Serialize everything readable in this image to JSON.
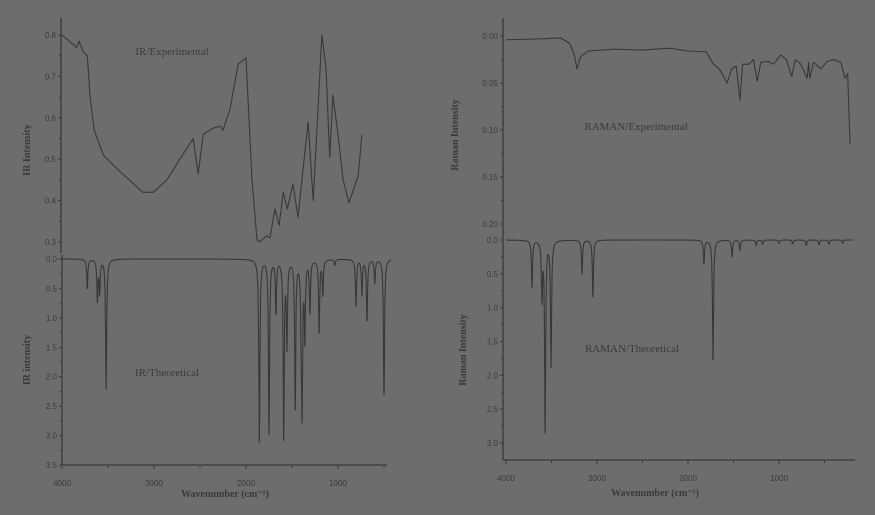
{
  "colors": {
    "background": "#6d6d6d",
    "line": "#383838",
    "text": "#3a3a3a"
  },
  "chart_data": [
    {
      "id": "ir-exp",
      "type": "line",
      "label": "IR/Experimental",
      "ylabel": "IR Intensity",
      "xlabel": "",
      "xlim": [
        4000,
        400
      ],
      "ylim": [
        0.28,
        0.84
      ],
      "yticks": [
        "0.3",
        "0.4",
        "0.5",
        "0.6",
        "0.7",
        "0.8"
      ],
      "xticks": [],
      "points": [
        [
          4000,
          0.8
        ],
        [
          3840,
          0.77
        ],
        [
          3815,
          0.785
        ],
        [
          3770,
          0.76
        ],
        [
          3725,
          0.75
        ],
        [
          3695,
          0.65
        ],
        [
          3650,
          0.57
        ],
        [
          3550,
          0.51
        ],
        [
          3370,
          0.47
        ],
        [
          3120,
          0.42
        ],
        [
          3010,
          0.42
        ],
        [
          2860,
          0.45
        ],
        [
          2720,
          0.5
        ],
        [
          2575,
          0.55
        ],
        [
          2520,
          0.465
        ],
        [
          2465,
          0.56
        ],
        [
          2360,
          0.575
        ],
        [
          2280,
          0.58
        ],
        [
          2250,
          0.57
        ],
        [
          2175,
          0.62
        ],
        [
          2085,
          0.73
        ],
        [
          2000,
          0.745
        ],
        [
          1935,
          0.45
        ],
        [
          1880,
          0.305
        ],
        [
          1850,
          0.3
        ],
        [
          1775,
          0.315
        ],
        [
          1740,
          0.31
        ],
        [
          1685,
          0.38
        ],
        [
          1640,
          0.34
        ],
        [
          1595,
          0.42
        ],
        [
          1550,
          0.38
        ],
        [
          1490,
          0.44
        ],
        [
          1435,
          0.36
        ],
        [
          1325,
          0.59
        ],
        [
          1270,
          0.4
        ],
        [
          1175,
          0.8
        ],
        [
          1130,
          0.72
        ],
        [
          1090,
          0.505
        ],
        [
          1055,
          0.655
        ],
        [
          1000,
          0.56
        ],
        [
          945,
          0.45
        ],
        [
          880,
          0.395
        ],
        [
          780,
          0.46
        ],
        [
          740,
          0.56
        ]
      ]
    },
    {
      "id": "ir-theo",
      "type": "line",
      "label": "IR/Theoretical",
      "ylabel": "IR intensity",
      "xlabel": "Wavenumber (cm⁻¹)",
      "xlim": [
        4000,
        400
      ],
      "ylim": [
        0,
        3.5
      ],
      "y_inverted": true,
      "yticks": [
        "0.0",
        "0.5",
        "1.0",
        "1.5",
        "2.0",
        "2.5",
        "3.0",
        "3.5"
      ],
      "xticks": [
        "4000",
        "3000",
        "2000",
        "1000"
      ],
      "peaks": [
        [
          3725,
          0.5
        ],
        [
          3615,
          0.7
        ],
        [
          3590,
          0.55
        ],
        [
          3520,
          2.2
        ],
        [
          1855,
          3.15
        ],
        [
          1750,
          2.95
        ],
        [
          1675,
          0.9
        ],
        [
          1590,
          3.0
        ],
        [
          1555,
          1.45
        ],
        [
          1465,
          2.55
        ],
        [
          1400,
          1.0
        ],
        [
          1390,
          2.35
        ],
        [
          1360,
          1.3
        ],
        [
          1305,
          0.9
        ],
        [
          1205,
          1.25
        ],
        [
          1165,
          0.6
        ],
        [
          1035,
          0.1
        ],
        [
          805,
          0.8
        ],
        [
          740,
          0.6
        ],
        [
          685,
          1.05
        ],
        [
          600,
          0.4
        ],
        [
          500,
          2.3
        ]
      ]
    },
    {
      "id": "raman-exp",
      "type": "line",
      "label": "RAMAN/Experimental",
      "ylabel": "Raman Intensity",
      "xlabel": "",
      "xlim": [
        4000,
        165
      ],
      "ylim": [
        -0.018,
        0.215
      ],
      "y_inverted": true,
      "yticks": [
        "0.00",
        "0.05",
        "0.10",
        "0.15",
        "0.20"
      ],
      "xticks": [],
      "points": [
        [
          4000,
          0.004
        ],
        [
          3600,
          0.003
        ],
        [
          3400,
          0.002
        ],
        [
          3300,
          0.008
        ],
        [
          3250,
          0.02
        ],
        [
          3220,
          0.035
        ],
        [
          3180,
          0.022
        ],
        [
          3100,
          0.016
        ],
        [
          2800,
          0.014
        ],
        [
          2500,
          0.015
        ],
        [
          2200,
          0.013
        ],
        [
          2000,
          0.016
        ],
        [
          1800,
          0.017
        ],
        [
          1720,
          0.03
        ],
        [
          1650,
          0.036
        ],
        [
          1570,
          0.05
        ],
        [
          1520,
          0.035
        ],
        [
          1470,
          0.032
        ],
        [
          1430,
          0.068
        ],
        [
          1400,
          0.03
        ],
        [
          1330,
          0.03
        ],
        [
          1280,
          0.025
        ],
        [
          1240,
          0.048
        ],
        [
          1200,
          0.028
        ],
        [
          1120,
          0.027
        ],
        [
          1060,
          0.03
        ],
        [
          980,
          0.02
        ],
        [
          920,
          0.025
        ],
        [
          860,
          0.043
        ],
        [
          820,
          0.025
        ],
        [
          760,
          0.03
        ],
        [
          690,
          0.045
        ],
        [
          675,
          0.028
        ],
        [
          660,
          0.045
        ],
        [
          620,
          0.028
        ],
        [
          540,
          0.035
        ],
        [
          470,
          0.027
        ],
        [
          400,
          0.025
        ],
        [
          320,
          0.028
        ],
        [
          275,
          0.045
        ],
        [
          245,
          0.04
        ],
        [
          220,
          0.115
        ]
      ]
    },
    {
      "id": "raman-theo",
      "type": "line",
      "label": "RAMAN/Theoretical",
      "ylabel": "Raman Intensity",
      "xlabel": "Wavenumber (cm⁻¹)",
      "xlim": [
        4000,
        165
      ],
      "ylim": [
        0,
        3.3
      ],
      "y_inverted": true,
      "yticks": [
        "0.0",
        "0.5",
        "1.0",
        "1.5",
        "2.0",
        "2.5",
        "3.0"
      ],
      "xticks": [
        "4000",
        "3000",
        "2000",
        "1000"
      ],
      "peaks": [
        [
          3715,
          0.7
        ],
        [
          3605,
          0.85
        ],
        [
          3570,
          2.8
        ],
        [
          3505,
          1.88
        ],
        [
          3165,
          0.5
        ],
        [
          3045,
          0.85
        ],
        [
          1825,
          0.35
        ],
        [
          1725,
          1.8
        ],
        [
          1515,
          0.25
        ],
        [
          1430,
          0.15
        ],
        [
          1250,
          0.08
        ],
        [
          1180,
          0.06
        ],
        [
          1000,
          0.05
        ],
        [
          850,
          0.06
        ],
        [
          700,
          0.08
        ],
        [
          560,
          0.07
        ],
        [
          450,
          0.06
        ],
        [
          300,
          0.05
        ]
      ]
    }
  ]
}
